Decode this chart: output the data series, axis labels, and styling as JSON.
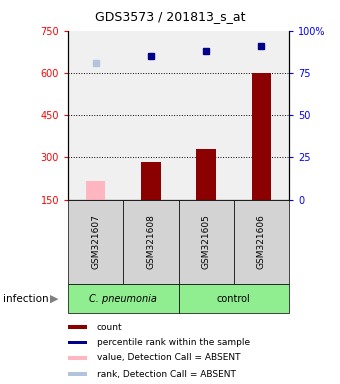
{
  "title": "GDS3573 / 201813_s_at",
  "samples": [
    "GSM321607",
    "GSM321608",
    "GSM321605",
    "GSM321606"
  ],
  "bar_values": [
    215,
    285,
    330,
    600
  ],
  "bar_absent": [
    true,
    false,
    false,
    false
  ],
  "percentile_values": [
    81,
    85,
    88,
    91
  ],
  "percentile_absent": [
    true,
    false,
    false,
    false
  ],
  "ylim_left": [
    150,
    750
  ],
  "ylim_right": [
    0,
    100
  ],
  "yticks_left": [
    150,
    300,
    450,
    600,
    750
  ],
  "yticks_right": [
    0,
    25,
    50,
    75,
    100
  ],
  "ytick_labels_left": [
    "150",
    "300",
    "450",
    "600",
    "750"
  ],
  "ytick_labels_right": [
    "0",
    "25",
    "50",
    "75",
    "100%"
  ],
  "bar_color_normal": "#8B0000",
  "bar_color_absent": "#FFB6C1",
  "dot_color_normal": "#00008B",
  "dot_color_absent": "#B0C4DE",
  "grid_dotted_values": [
    300,
    450,
    600
  ],
  "bar_width": 0.35,
  "legend_items": [
    {
      "color": "#8B0000",
      "label": "count"
    },
    {
      "color": "#00008B",
      "label": "percentile rank within the sample"
    },
    {
      "color": "#FFB6C1",
      "label": "value, Detection Call = ABSENT"
    },
    {
      "color": "#B0C4DE",
      "label": "rank, Detection Call = ABSENT"
    }
  ]
}
